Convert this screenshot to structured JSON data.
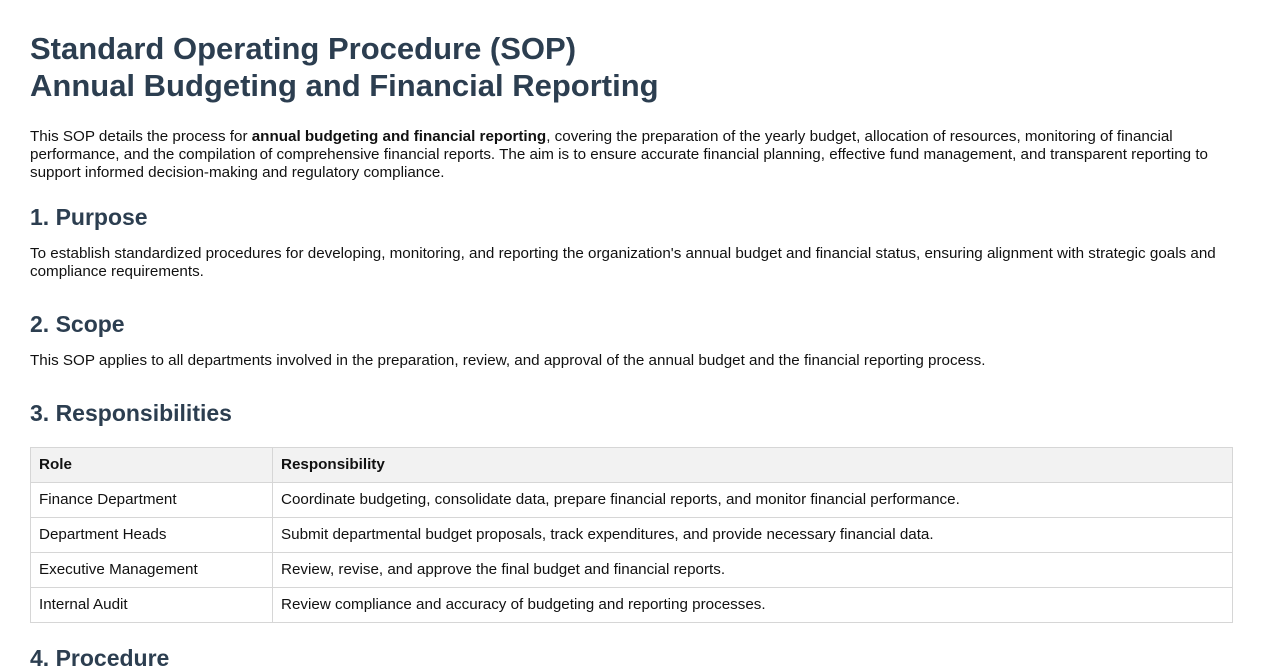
{
  "document": {
    "title_line1": "Standard Operating Procedure (SOP)",
    "title_line2": "Annual Budgeting and Financial Reporting",
    "intro": {
      "before": "This SOP details the process for ",
      "bold": "annual budgeting and financial reporting",
      "after": ", covering the preparation of the yearly budget, allocation of resources, monitoring of financial performance, and the compilation of comprehensive financial reports. The aim is to ensure accurate financial planning, effective fund management, and transparent reporting to support informed decision-making and regulatory compliance."
    },
    "sections": {
      "purpose": {
        "heading": "1. Purpose",
        "text": "To establish standardized procedures for developing, monitoring, and reporting the organization's annual budget and financial status, ensuring alignment with strategic goals and compliance requirements."
      },
      "scope": {
        "heading": "2. Scope",
        "text": "This SOP applies to all departments involved in the preparation, review, and approval of the annual budget and the financial reporting process."
      },
      "responsibilities": {
        "heading": "3. Responsibilities",
        "table": {
          "headers": [
            "Role",
            "Responsibility"
          ],
          "rows": [
            [
              "Finance Department",
              "Coordinate budgeting, consolidate data, prepare financial reports, and monitor financial performance."
            ],
            [
              "Department Heads",
              "Submit departmental budget proposals, track expenditures, and provide necessary financial data."
            ],
            [
              "Executive Management",
              "Review, revise, and approve the final budget and financial reports."
            ],
            [
              "Internal Audit",
              "Review compliance and accuracy of budgeting and reporting processes."
            ]
          ]
        }
      },
      "procedure": {
        "heading": "4. Procedure"
      }
    }
  }
}
